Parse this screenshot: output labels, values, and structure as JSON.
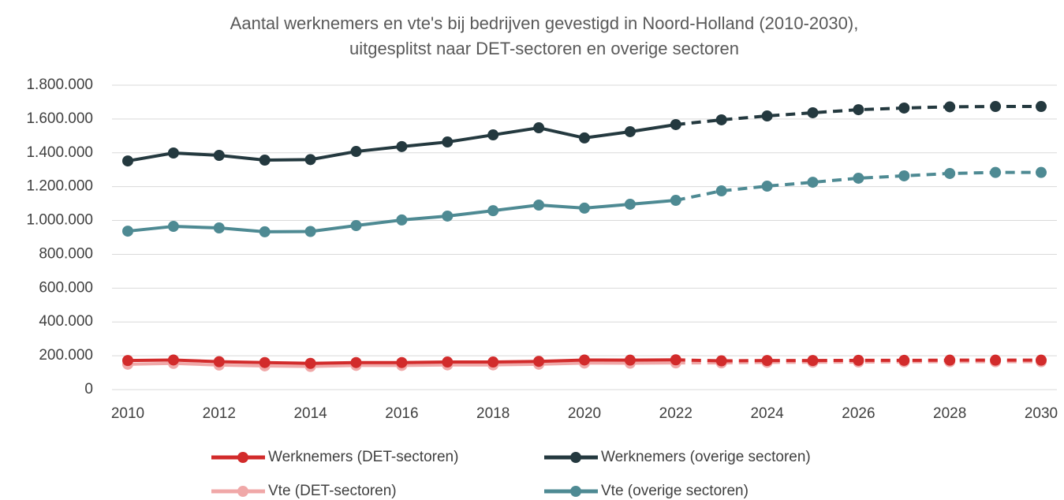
{
  "chart_data": {
    "type": "line",
    "title": [
      "Aantal werknemers en vte's bij bedrijven gevestigd in Noord-Holland (2010-2030),",
      "uitgesplitst naar DET-sectoren en overige sectoren"
    ],
    "x": [
      2010,
      2011,
      2012,
      2013,
      2014,
      2015,
      2016,
      2017,
      2018,
      2019,
      2020,
      2021,
      2022,
      2023,
      2024,
      2025,
      2026,
      2027,
      2028,
      2029,
      2030
    ],
    "xlim": [
      2010,
      2030
    ],
    "xticks": [
      2010,
      2012,
      2014,
      2016,
      2018,
      2020,
      2022,
      2024,
      2026,
      2028,
      2030
    ],
    "ylim": [
      0,
      1800000
    ],
    "yticks": [
      0,
      {
        "value": 200000,
        "label": "200.000"
      },
      {
        "value": 400000,
        "label": "400.000"
      },
      {
        "value": 600000,
        "label": "600.000"
      },
      {
        "value": 800000,
        "label": "800.000"
      },
      {
        "value": 1000000,
        "label": "1.000.000"
      },
      {
        "value": 1200000,
        "label": "1.200.000"
      },
      {
        "value": 1400000,
        "label": "1.400.000"
      },
      {
        "value": 1600000,
        "label": "1.600.000"
      },
      {
        "value": 1800000,
        "label": "1.800.000"
      }
    ],
    "grid": true,
    "forecast_from": 2022,
    "legend": "bottom",
    "series": [
      {
        "name": "Werknemers (DET-sectoren)",
        "color": "#d22b2b",
        "values": [
          172000,
          175000,
          165000,
          160000,
          155000,
          160000,
          160000,
          163000,
          163000,
          167000,
          175000,
          174000,
          176000,
          170000,
          172000,
          172000,
          173000,
          173000,
          174000,
          174000,
          174000
        ]
      },
      {
        "name": "Werknemers (overige sectoren)",
        "color": "#24393f",
        "values": [
          1352000,
          1399000,
          1385000,
          1357000,
          1360000,
          1408000,
          1437000,
          1464000,
          1506000,
          1548000,
          1488000,
          1525000,
          1567000,
          1595000,
          1618000,
          1637000,
          1655000,
          1665000,
          1672000,
          1674000,
          1674000
        ]
      },
      {
        "name": "Vte (DET-sectoren)",
        "color": "#f0a8a8",
        "values": [
          150000,
          155000,
          145000,
          140000,
          137000,
          143000,
          143000,
          146000,
          146000,
          150000,
          157000,
          156000,
          158000,
          158000,
          161000,
          162000,
          163000,
          164000,
          165000,
          165000,
          165000
        ]
      },
      {
        "name": "Vte (overige sectoren)",
        "color": "#4e8a93",
        "values": [
          937000,
          965000,
          956000,
          933000,
          935000,
          970000,
          1003000,
          1026000,
          1058000,
          1091000,
          1073000,
          1096000,
          1119000,
          1175000,
          1203000,
          1226000,
          1250000,
          1264000,
          1278000,
          1284000,
          1284000
        ]
      }
    ]
  }
}
